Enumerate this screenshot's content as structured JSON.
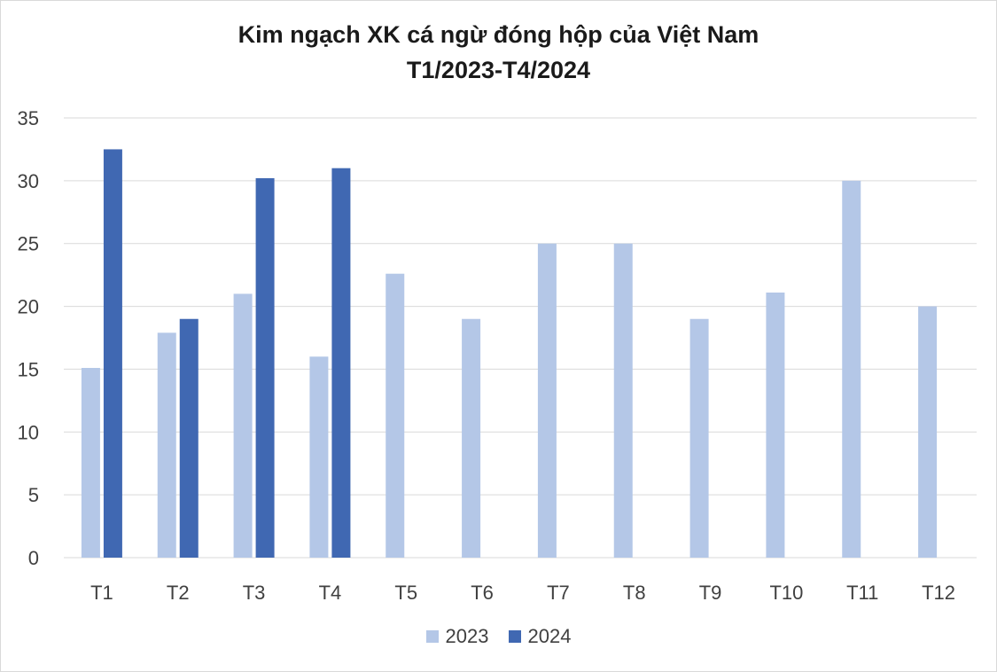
{
  "chart_data": {
    "type": "bar",
    "title": "Kim ngạch XK cá ngừ đóng hộp của Việt Nam",
    "subtitle": "T1/2023-T4/2024",
    "xlabel": "",
    "ylabel": "",
    "ylim": [
      0,
      35
    ],
    "yticks": [
      0,
      5,
      10,
      15,
      20,
      25,
      30,
      35
    ],
    "grid": true,
    "legend_position": "bottom",
    "categories": [
      "T1",
      "T2",
      "T3",
      "T4",
      "T5",
      "T6",
      "T7",
      "T8",
      "T9",
      "T10",
      "T11",
      "T12"
    ],
    "series": [
      {
        "name": "2023",
        "color": "#b4c7e7",
        "values": [
          15.1,
          17.9,
          21.0,
          16.0,
          22.6,
          19.0,
          25.0,
          25.0,
          19.0,
          21.1,
          30.0,
          20.0
        ]
      },
      {
        "name": "2024",
        "color": "#4068b2",
        "values": [
          32.5,
          19.0,
          30.2,
          31.0,
          null,
          null,
          null,
          null,
          null,
          null,
          null,
          null
        ]
      }
    ]
  }
}
